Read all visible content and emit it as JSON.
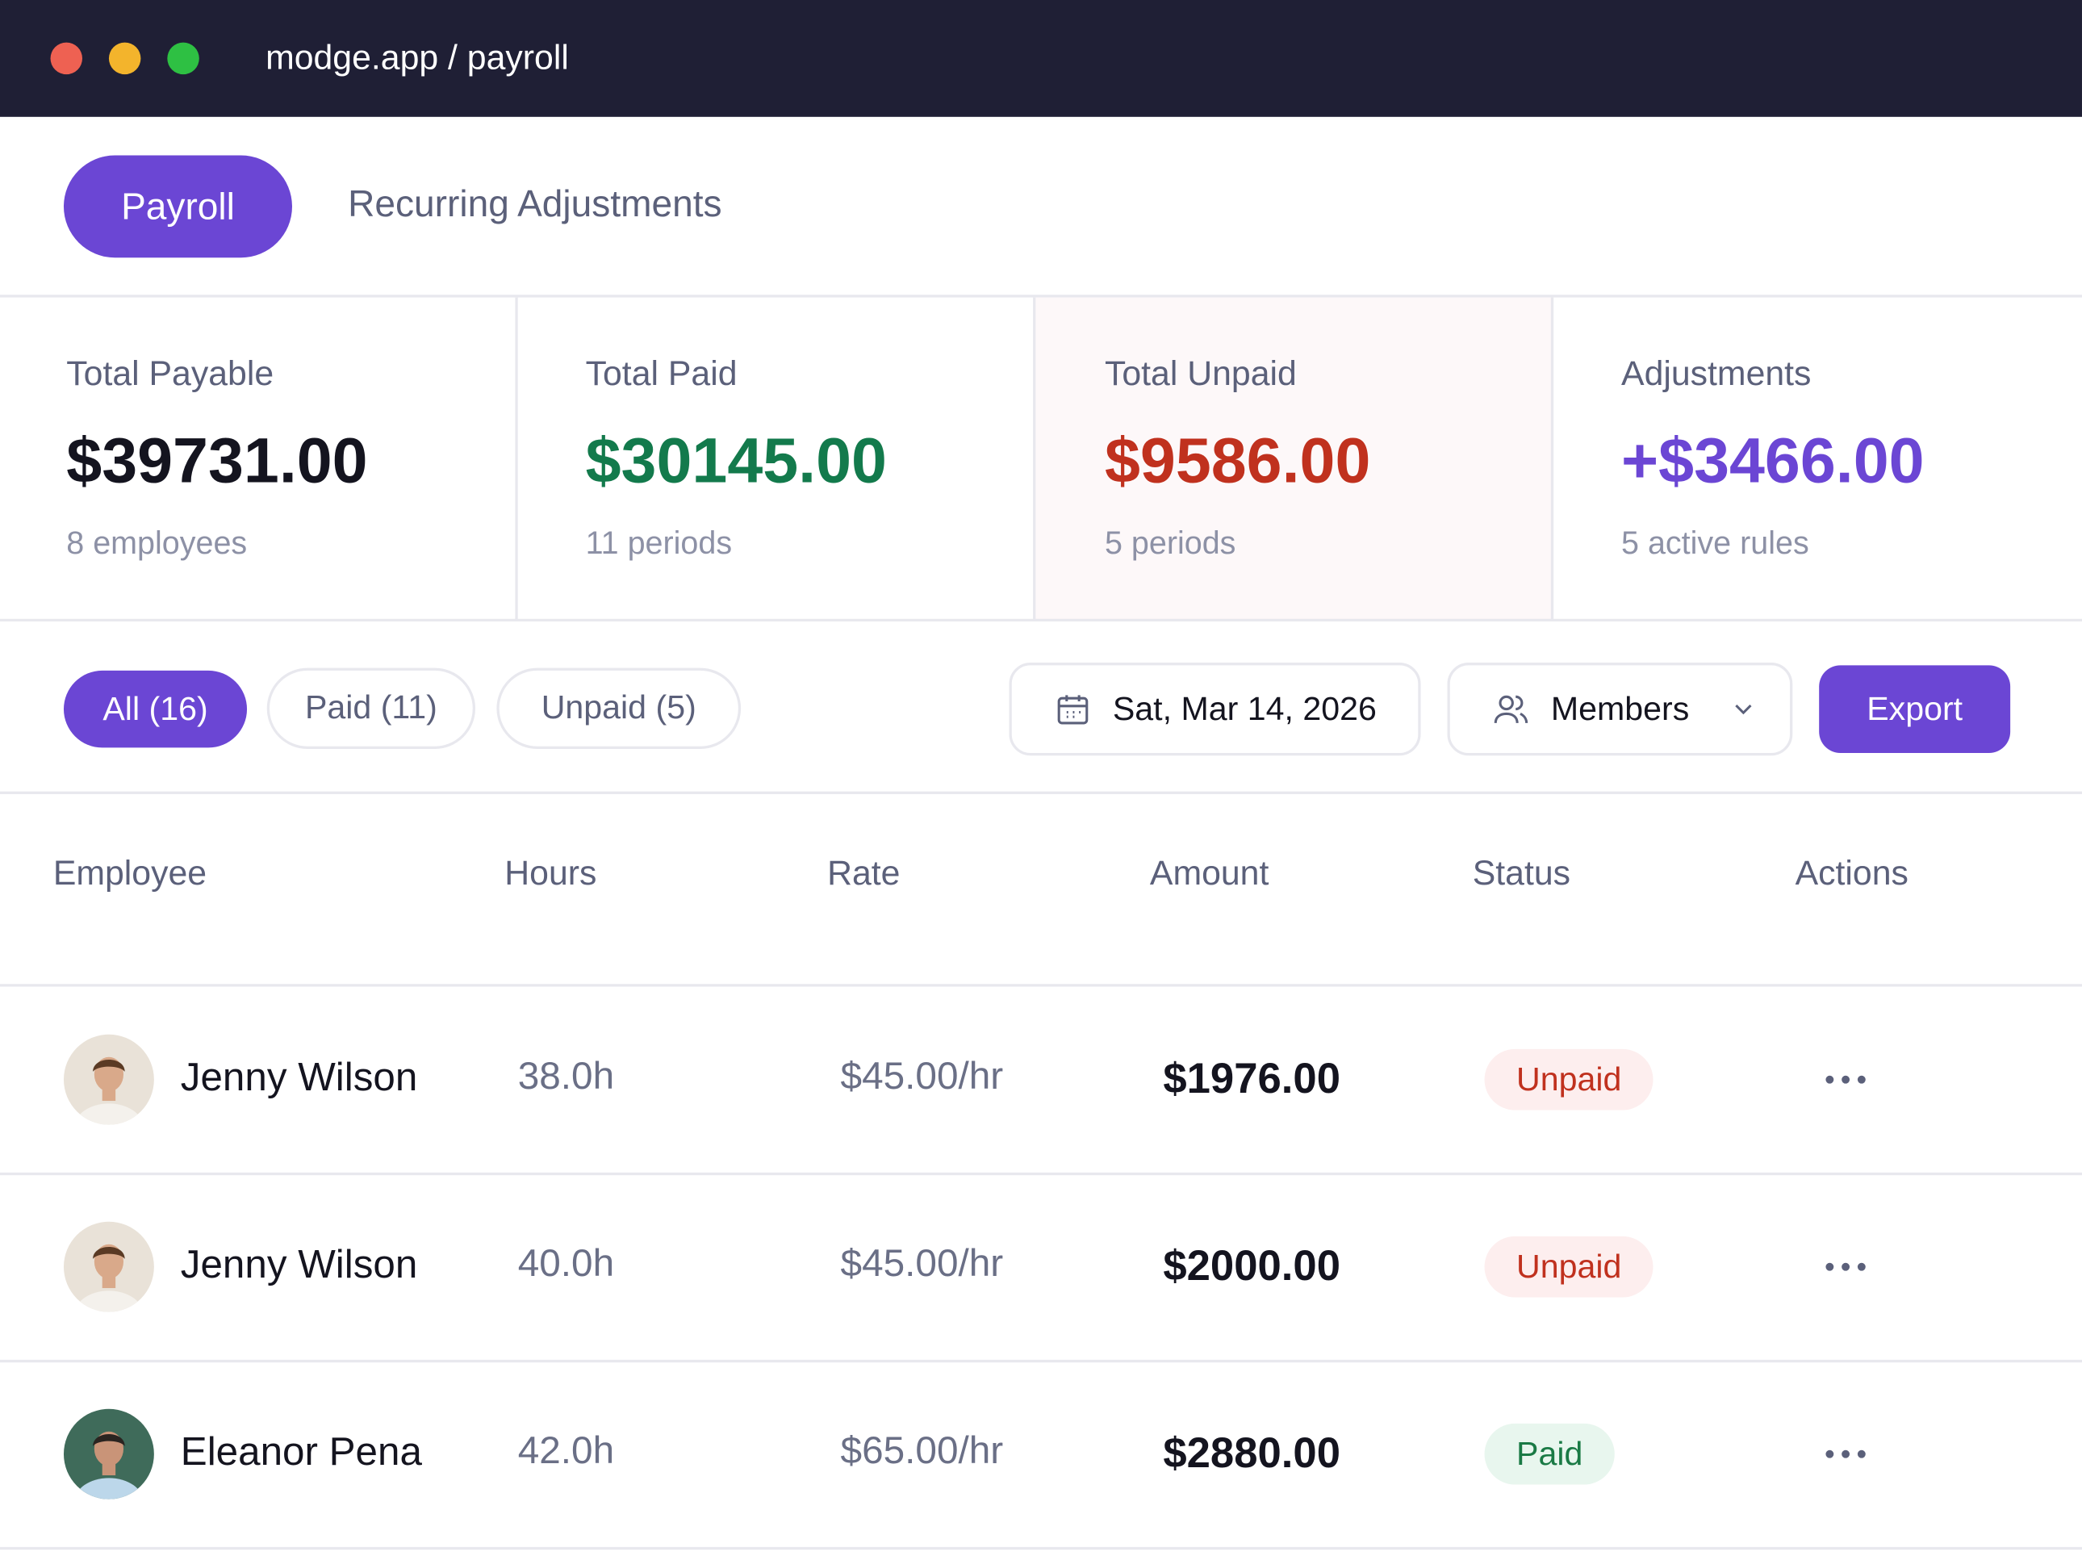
{
  "window": {
    "url": "modge.app / payroll"
  },
  "tabs": [
    "Payroll",
    "Recurring Adjustments"
  ],
  "stats": [
    {
      "label": "Total Payable",
      "value": "$39731.00",
      "note": "8 employees"
    },
    {
      "label": "Total Paid",
      "value": "$30145.00",
      "note": "11 periods"
    },
    {
      "label": "Total Unpaid",
      "value": "$9586.00",
      "note": "5 periods"
    },
    {
      "label": "Adjustments",
      "value": "+$3466.00",
      "note": "5 active rules"
    }
  ],
  "filters": [
    "All (16)",
    "Paid (11)",
    "Unpaid (5)"
  ],
  "date": "Sat, Mar 14, 2026",
  "members": "Members",
  "export": "Export",
  "table": {
    "headers": [
      "Employee",
      "Hours",
      "Rate",
      "Amount",
      "Status",
      "Actions"
    ],
    "rows": [
      [
        "Jenny Wilson",
        "38.0h",
        "$45.00/hr",
        "$1976.00",
        "Unpaid"
      ],
      [
        "Jenny Wilson",
        "40.0h",
        "$45.00/hr",
        "$2000.00",
        "Unpaid"
      ],
      [
        "Eleanor Pena",
        "42.0h",
        "$65.00/hr",
        "$2880.00",
        "Paid"
      ]
    ]
  }
}
